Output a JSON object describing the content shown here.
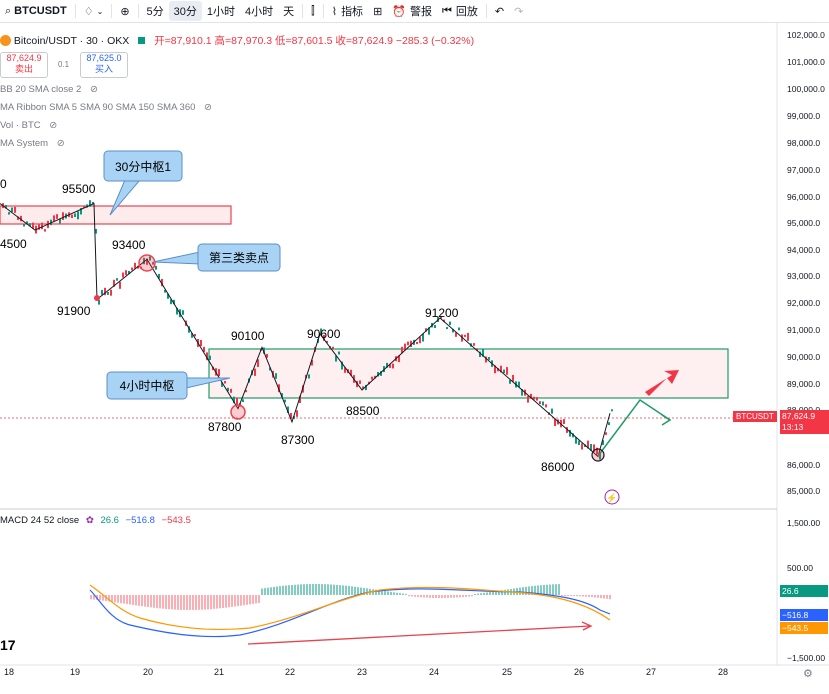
{
  "toolbar": {
    "symbol": "BTCUSDT",
    "intervals": [
      "5分",
      "30分",
      "1小时",
      "4小时",
      "天"
    ],
    "active_interval": "30分",
    "indicators_label": "指标",
    "alert_label": "警报",
    "replay_label": "回放"
  },
  "legend": {
    "title": "Bitcoin/USDT · 30 · OKX",
    "open": "开=87,910.1",
    "high": "高=87,970.3",
    "low": "低=87,601.5",
    "close": "收=87,624.9",
    "change": "−285.3 (−0.32%)",
    "sell_price": "87,624.9",
    "sell_label": "卖出",
    "spread": "0.1",
    "buy_price": "87,625.0",
    "buy_label": "买入",
    "indicators": [
      "BB 20 SMA close 2",
      "MA Ribbon SMA 5 SMA 90 SMA 150 SMA 360",
      "Vol · BTC",
      "MA System"
    ]
  },
  "price_axis": [
    "102,000.0",
    "101,000.0",
    "100,000.0",
    "99,000.0",
    "98,000.0",
    "97,000.0",
    "96,000.0",
    "95,000.0",
    "94,000.0",
    "93,000.0",
    "92,000.0",
    "91,000.0",
    "90,000.0",
    "89,000.0",
    "88,000.0",
    "86,000.0",
    "85,000.0"
  ],
  "current_price": {
    "symbol": "BTCUSDT",
    "price": "87,624.9",
    "countdown": "13:13",
    "color": "#f23645"
  },
  "macd": {
    "title": "MACD 24 52 close",
    "values": [
      "26.6",
      "−516.8",
      "−543.5"
    ],
    "axis": [
      "1,500.00",
      "500.00",
      "−1,500.00"
    ],
    "tags": [
      "26.6",
      "−516.8",
      "−543.5"
    ]
  },
  "date_axis": [
    "18",
    "19",
    "20",
    "21",
    "22",
    "23",
    "24",
    "25",
    "26",
    "27",
    "28"
  ],
  "annotations": {
    "callout_30m": "30分中枢1",
    "callout_sell3": "第三类卖点",
    "callout_4h": "4小时中枢",
    "levels": [
      "0",
      "95500",
      "4500",
      "93400",
      "91900",
      "90100",
      "90600",
      "91200",
      "87800",
      "87300",
      "88500",
      "86000"
    ]
  },
  "colors": {
    "up": "#089981",
    "down": "#f23645",
    "zone_red": "#e8434f",
    "zone_green": "#1f9b6a",
    "callout": "#a9d3f5"
  },
  "chart_data": {
    "type": "line",
    "title": "Bitcoin/USDT · 30 · OKX",
    "series": [
      {
        "name": "",
        "values": [
          95500,
          94500,
          95500,
          91900,
          93400,
          87800,
          90100,
          87300,
          90600,
          88500,
          91200,
          86000,
          87624.9
        ]
      }
    ],
    "ylim": [
      85000,
      102000
    ],
    "x_ticks": [
      "18",
      "19",
      "20",
      "21",
      "22",
      "23",
      "24",
      "25",
      "26",
      "27",
      "28"
    ]
  }
}
